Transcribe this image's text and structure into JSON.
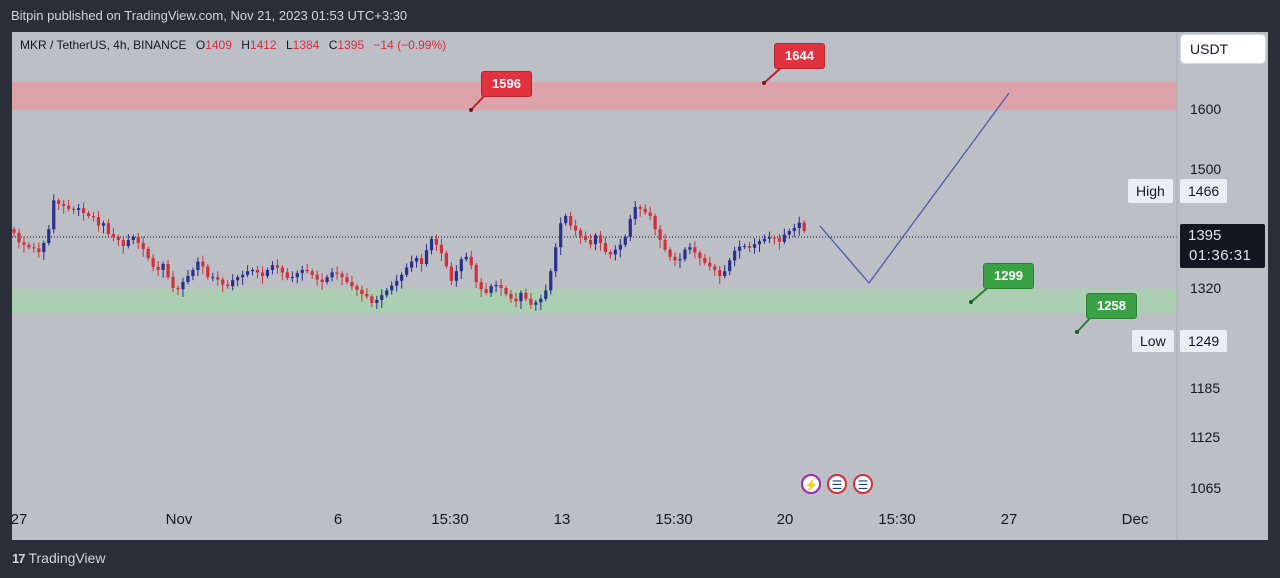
{
  "header": {
    "published_text": "Bitpin published on TradingView.com, Nov 21, 2023 01:53 UTC+3:30"
  },
  "legend": {
    "symbol_text": "MKR / TetherUS, 4h, BINANCE",
    "open_label": "O",
    "open_value": "1409",
    "high_label": "H",
    "high_value": "1412",
    "low_label": "L",
    "low_value": "1384",
    "close_label": "C",
    "close_value": "1395",
    "change_text": "−14 (−0.99%)"
  },
  "currency_button": {
    "label": "USDT"
  },
  "price_axis": {
    "ticks": [
      "1600",
      "1500",
      "1320",
      "1185",
      "1125",
      "1065"
    ]
  },
  "high_marker": {
    "label": "High",
    "value": "1466"
  },
  "low_marker": {
    "label": "Low",
    "value": "1249"
  },
  "current_price": {
    "value": "1395",
    "countdown": "01:36:31"
  },
  "time_axis": {
    "ticks": [
      "27",
      "Nov",
      "6",
      "15:30",
      "13",
      "15:30",
      "20",
      "15:30",
      "27",
      "Dec"
    ]
  },
  "callouts": {
    "resistance_top": "1644",
    "resistance_bottom": "1596",
    "support_top": "1299",
    "support_bottom": "1258"
  },
  "footer": {
    "brand": "TradingView",
    "logo_glyph": "17"
  },
  "colors": {
    "up": "#2a2e8c",
    "down": "#d0303a",
    "resistance_zone": "#e89aa0",
    "support_zone": "#a7d4ad",
    "projection": "#4a5ca8"
  },
  "chart_data": {
    "type": "candlestick",
    "symbol": "MKR / TetherUS",
    "interval": "4h",
    "exchange": "BINANCE",
    "y_range": [
      1040,
      1700
    ],
    "candles_close": [
      1392,
      1376,
      1372,
      1368,
      1366,
      1360,
      1375,
      1398,
      1446,
      1440,
      1437,
      1432,
      1430,
      1433,
      1425,
      1420,
      1418,
      1404,
      1408,
      1390,
      1385,
      1380,
      1370,
      1380,
      1385,
      1375,
      1365,
      1350,
      1335,
      1330,
      1340,
      1318,
      1300,
      1298,
      1310,
      1320,
      1330,
      1344,
      1336,
      1318,
      1318,
      1314,
      1306,
      1303,
      1313,
      1318,
      1322,
      1328,
      1330,
      1326,
      1320,
      1330,
      1338,
      1334,
      1326,
      1317,
      1318,
      1325,
      1330,
      1328,
      1322,
      1314,
      1310,
      1318,
      1326,
      1324,
      1318,
      1310,
      1303,
      1297,
      1290,
      1286,
      1275,
      1280,
      1288,
      1296,
      1304,
      1312,
      1322,
      1334,
      1344,
      1350,
      1340,
      1363,
      1382,
      1372,
      1358,
      1336,
      1312,
      1328,
      1348,
      1352,
      1338,
      1310,
      1298,
      1292,
      1303,
      1305,
      1300,
      1290,
      1282,
      1278,
      1292,
      1282,
      1272,
      1276,
      1282,
      1296,
      1328,
      1368,
      1408,
      1420,
      1404,
      1396,
      1387,
      1380,
      1373,
      1388,
      1375,
      1360,
      1356,
      1364,
      1372,
      1385,
      1415,
      1435,
      1432,
      1426,
      1420,
      1398,
      1380,
      1364,
      1352,
      1346,
      1348,
      1364,
      1368,
      1359,
      1350,
      1342,
      1336,
      1330,
      1320,
      1328,
      1346,
      1362,
      1369,
      1370,
      1367,
      1373,
      1378,
      1382,
      1384,
      1383,
      1377,
      1389,
      1395,
      1400,
      1409,
      1395
    ],
    "zones": [
      {
        "name": "resistance",
        "from": 1596,
        "to": 1644
      },
      {
        "name": "support",
        "from": 1258,
        "to": 1299
      }
    ],
    "projection_path": [
      [
        1395,
        "now"
      ],
      [
        1270,
        "Nov 24"
      ],
      [
        1630,
        "Nov 27"
      ]
    ],
    "high": 1466,
    "low": 1249,
    "last": 1395
  }
}
